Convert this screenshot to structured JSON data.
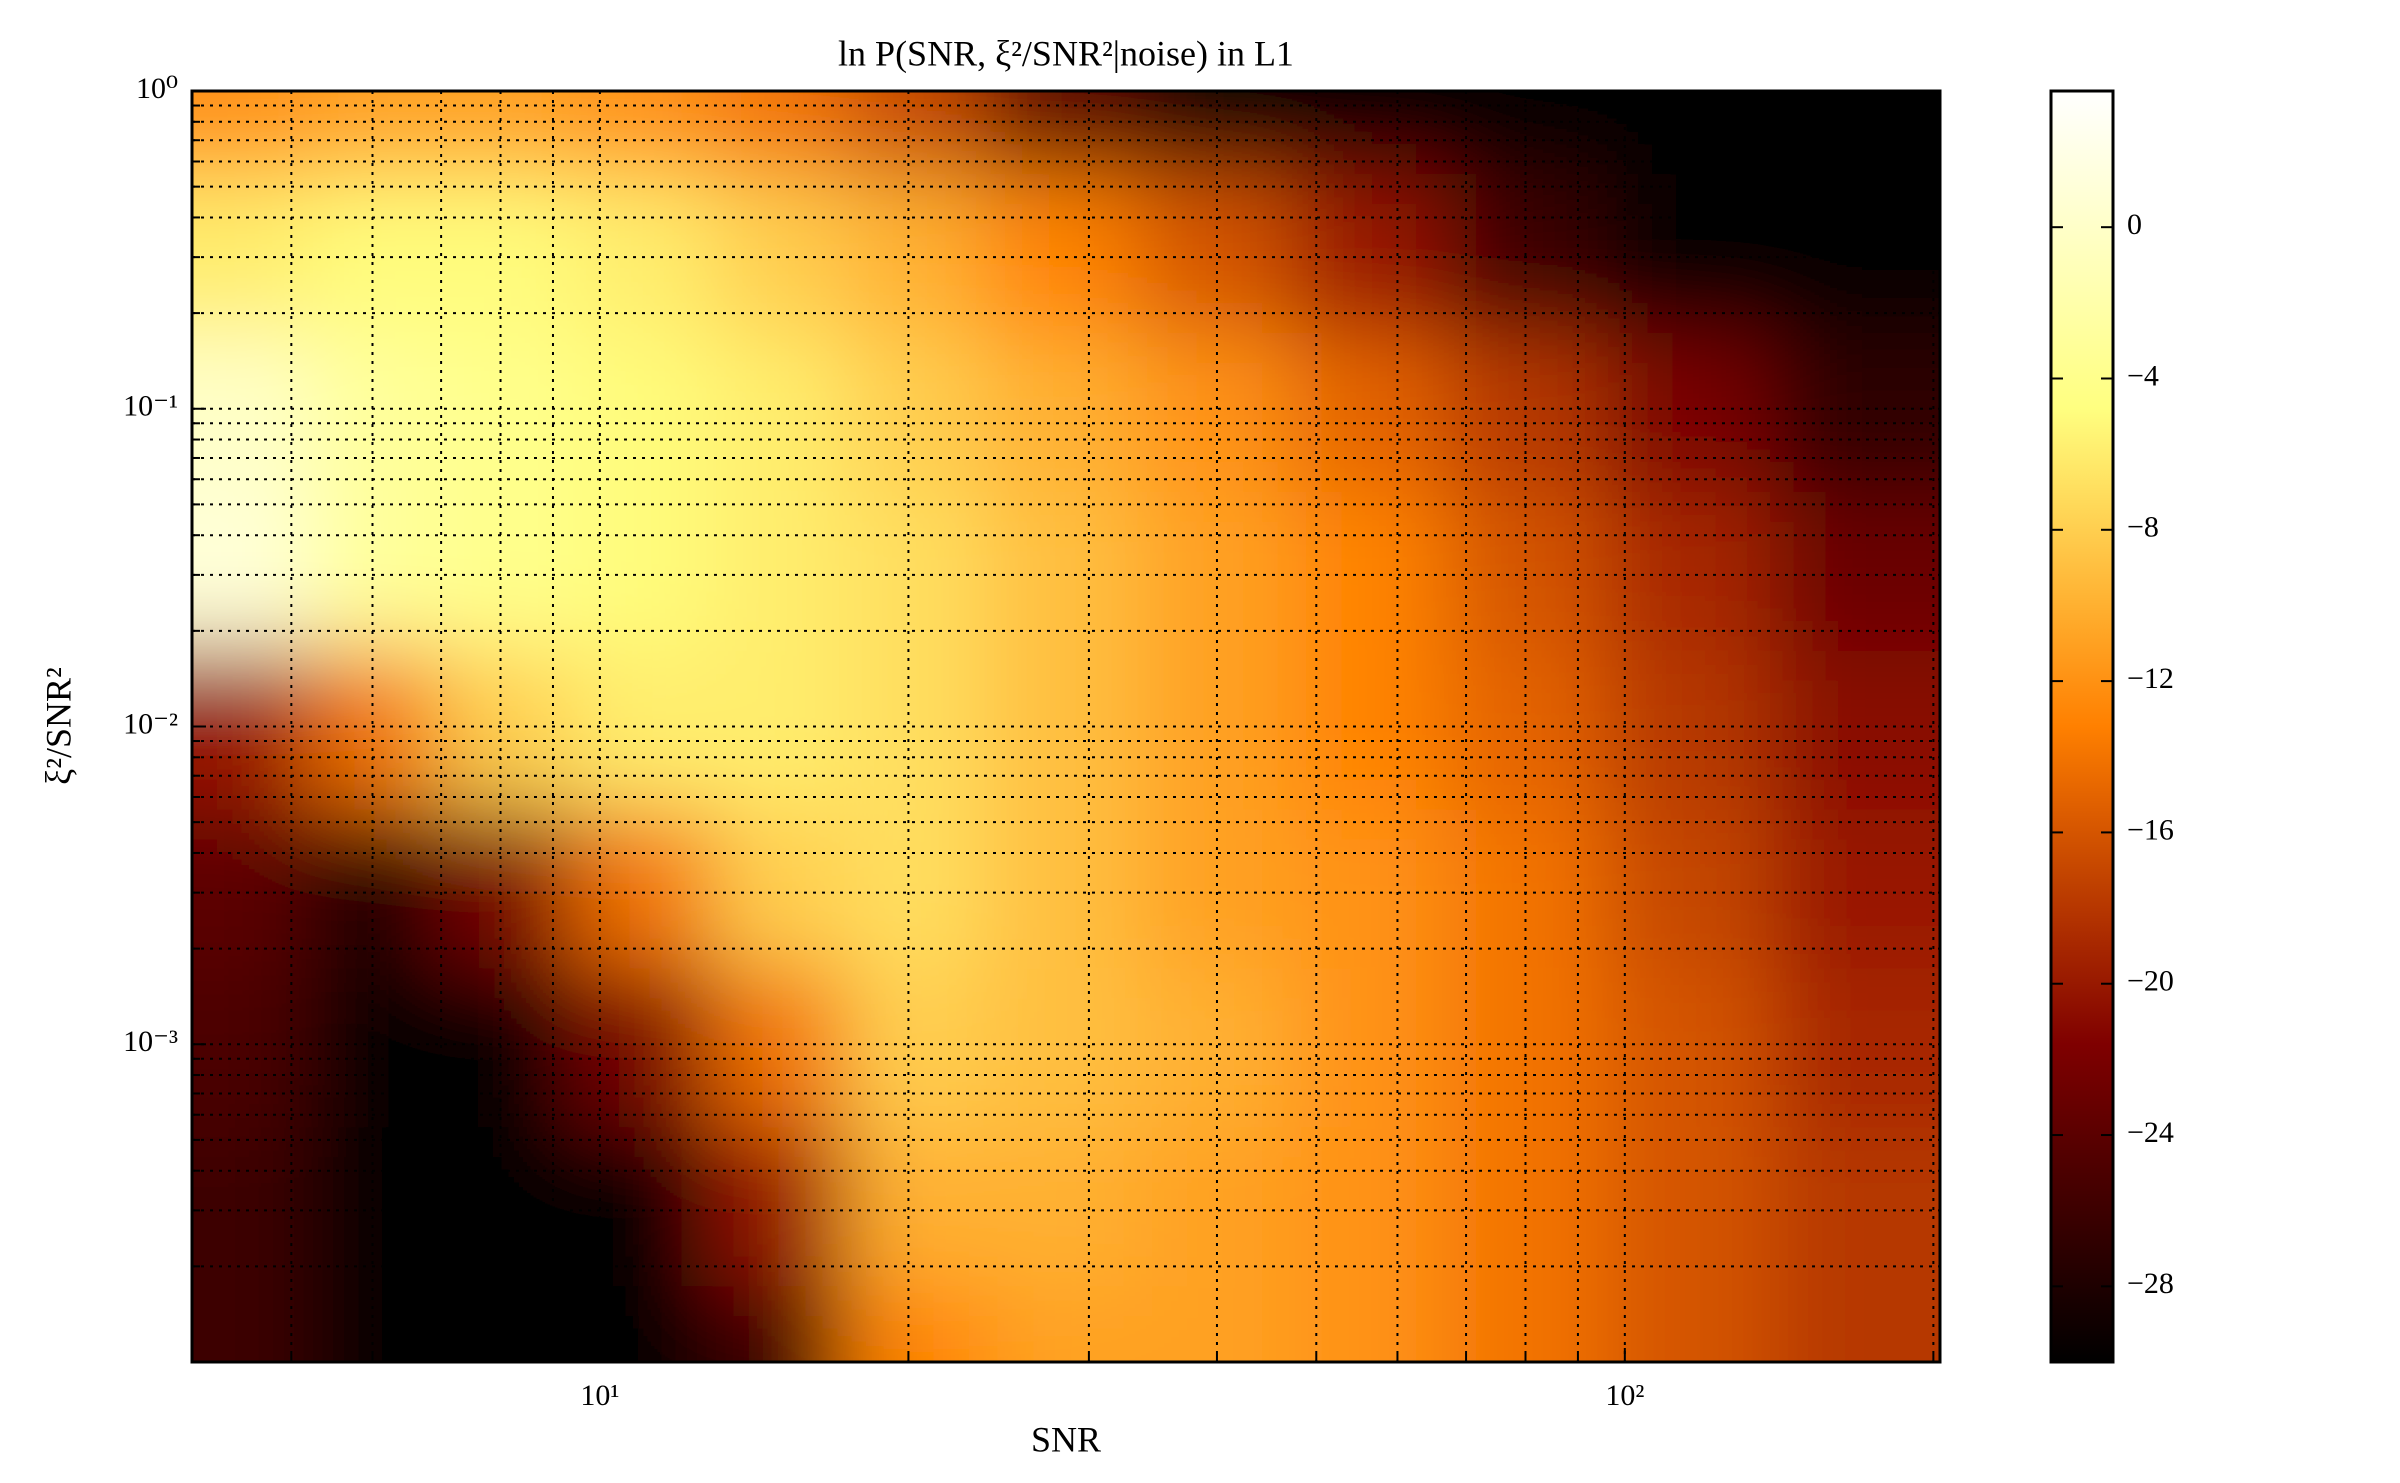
{
  "chart_data": {
    "type": "heatmap",
    "title": "ln P(SNR, ξ²/SNR²|noise) in L1",
    "xlabel": "SNR",
    "ylabel": "ξ²/SNR²",
    "xscale": "log",
    "yscale": "log",
    "grid": true,
    "colormap": "afmhot",
    "xlim": [
      4,
      203
    ],
    "ylim": [
      0.0001,
      1
    ],
    "xticks": [
      {
        "value": 10,
        "label": "10¹"
      },
      {
        "value": 100,
        "label": "10²"
      }
    ],
    "yticks": [
      {
        "value": 0.001,
        "label": "10⁻³"
      },
      {
        "value": 0.01,
        "label": "10⁻²"
      },
      {
        "value": 0.1,
        "label": "10⁻¹"
      },
      {
        "value": 1,
        "label": "10⁰"
      }
    ],
    "xminor": [
      5,
      6,
      7,
      8,
      9,
      20,
      30,
      40,
      50,
      60,
      70,
      80,
      90,
      200
    ],
    "yminor": [
      0.0002,
      0.0003,
      0.0004,
      0.0005,
      0.0006,
      0.0007,
      0.0008,
      0.0009,
      0.002,
      0.003,
      0.004,
      0.005,
      0.006,
      0.007,
      0.008,
      0.009,
      0.02,
      0.03,
      0.04,
      0.05,
      0.06,
      0.07,
      0.08,
      0.09,
      0.2,
      0.3,
      0.4,
      0.5,
      0.6,
      0.7,
      0.8,
      0.9
    ],
    "x": [
      4.5,
      6,
      8,
      11,
      15,
      20,
      28,
      40,
      56,
      80,
      113,
      170
    ],
    "y": [
      1,
      0.3,
      0.1,
      0.03,
      0.01,
      0.003,
      0.001,
      0.0003,
      0.0001
    ],
    "z": [
      [
        -12,
        -11,
        -11,
        -12,
        -14,
        -17,
        -24,
        -30,
        -30,
        -30,
        -30,
        -30
      ],
      [
        -6,
        -5,
        -5,
        -6,
        -8,
        -10,
        -13,
        -16,
        -20,
        -26,
        -30,
        -30
      ],
      [
        0,
        -3,
        -4,
        -5,
        -6,
        -8,
        -10,
        -12,
        -15,
        -18,
        -22,
        -27
      ],
      [
        1,
        -3,
        -4,
        -5,
        -6,
        -7,
        -9,
        -11,
        -13,
        -16,
        -19,
        -23
      ],
      [
        -20,
        -14,
        -8,
        -6,
        -6,
        -7,
        -9,
        -11,
        -13,
        -15,
        -18,
        -21
      ],
      [
        -24,
        -28,
        -22,
        -14,
        -8,
        -7,
        -9,
        -11,
        -12,
        -14,
        -17,
        -20
      ],
      [
        -25,
        -30,
        -30,
        -22,
        -14,
        -8,
        -9,
        -10,
        -12,
        -14,
        -16,
        -19
      ],
      [
        -26,
        -30,
        -30,
        -30,
        -20,
        -10,
        -10,
        -11,
        -12,
        -14,
        -16,
        -18
      ],
      [
        -26,
        -30,
        -30,
        -30,
        -26,
        -13,
        -11,
        -11,
        -12,
        -14,
        -16,
        -18
      ]
    ],
    "clim": [
      -30,
      3.6
    ],
    "cticks": [
      {
        "value": -28,
        "label": "−28"
      },
      {
        "value": -24,
        "label": "−24"
      },
      {
        "value": -20,
        "label": "−20"
      },
      {
        "value": -16,
        "label": "−16"
      },
      {
        "value": -12,
        "label": "−12"
      },
      {
        "value": -8,
        "label": "−8"
      },
      {
        "value": -4,
        "label": "−4"
      },
      0
    ]
  }
}
